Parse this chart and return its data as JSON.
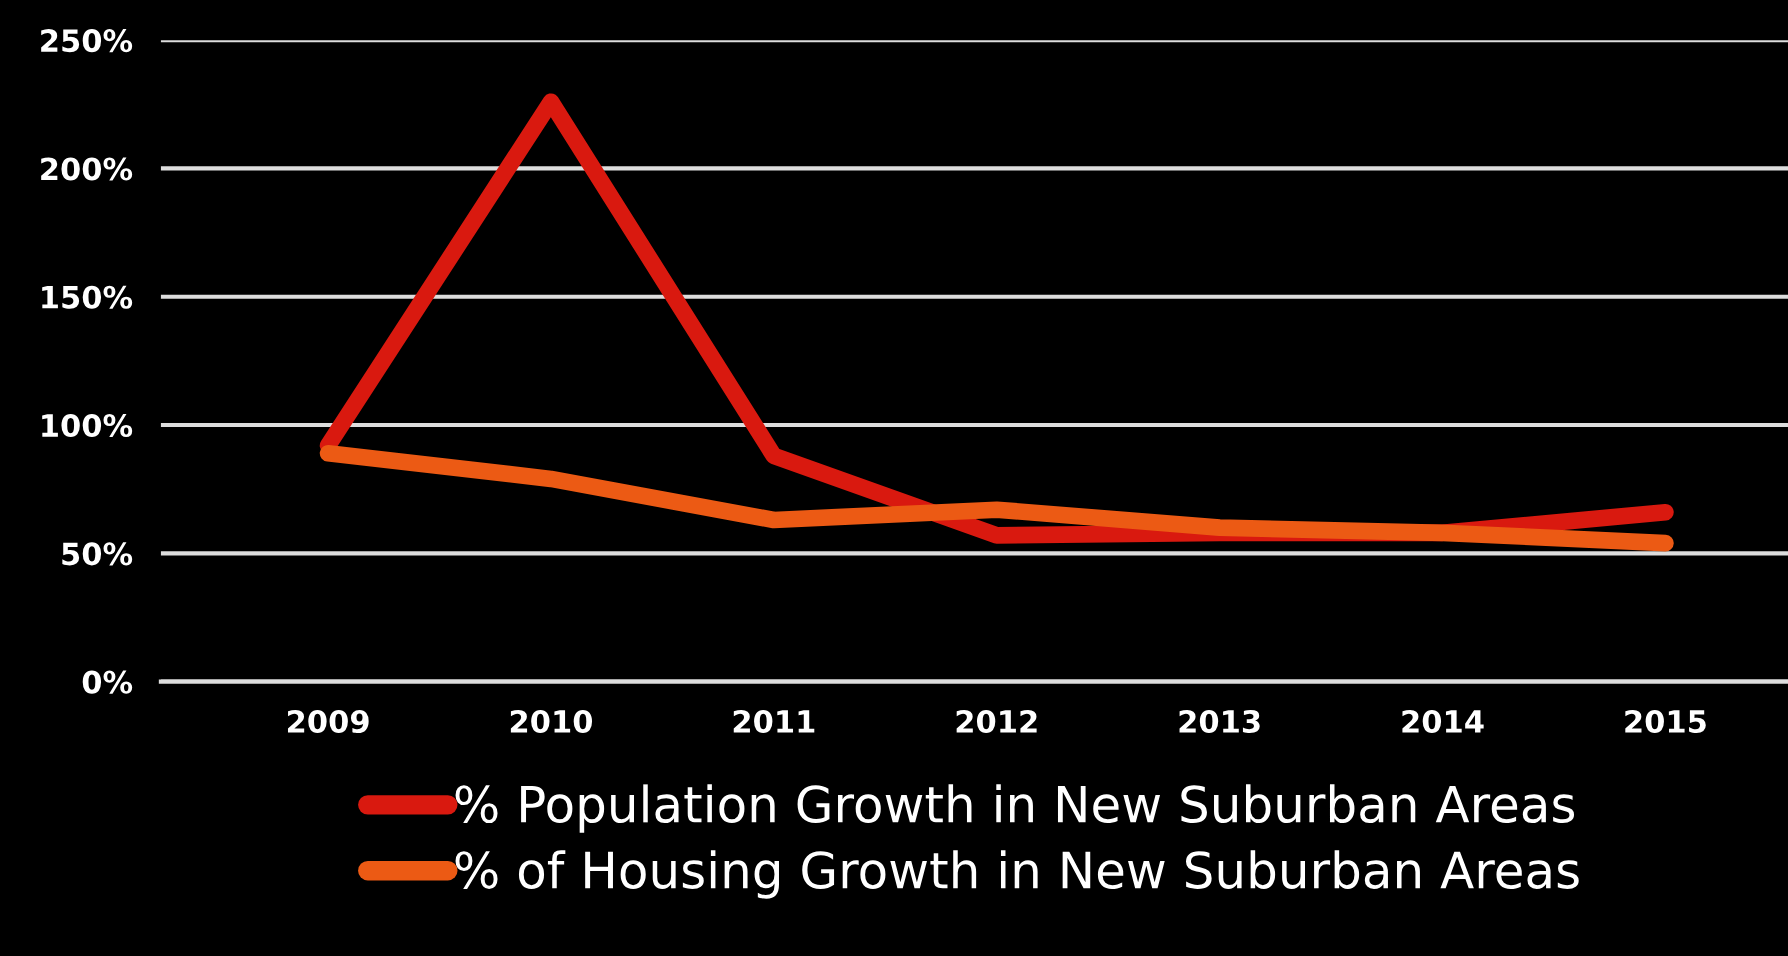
{
  "chart_data": {
    "type": "line",
    "categories": [
      "2009",
      "2010",
      "2011",
      "2012",
      "2013",
      "2014",
      "2015"
    ],
    "series": [
      {
        "name": "% Population Growth in New Suburban Areas",
        "color": "#d9190f",
        "values": [
          92,
          226,
          88,
          57,
          58,
          58,
          66
        ]
      },
      {
        "name": "% of Housing Growth in New Suburban Areas",
        "color": "#ec5a14",
        "values": [
          89,
          79,
          63,
          67,
          60,
          58,
          54
        ]
      }
    ],
    "ylim": [
      0,
      250
    ],
    "yticks": [
      {
        "value": 0,
        "label": "0%"
      },
      {
        "value": 50,
        "label": "50%"
      },
      {
        "value": 100,
        "label": "100%"
      },
      {
        "value": 150,
        "label": "150%"
      },
      {
        "value": 200,
        "label": "200%"
      },
      {
        "value": 250,
        "label": "250%"
      }
    ],
    "grid": "y",
    "legend": "bottom",
    "marker": "none",
    "line_style": "solid"
  }
}
